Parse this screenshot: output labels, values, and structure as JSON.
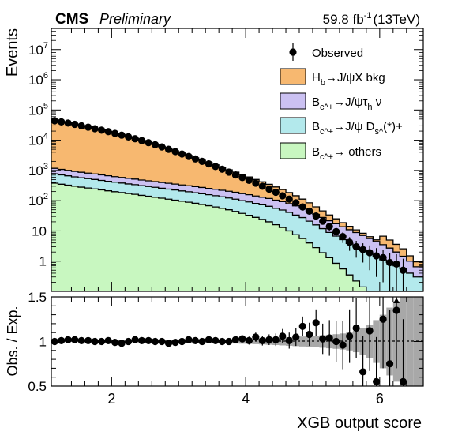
{
  "header": {
    "experiment": "CMS",
    "status": "Preliminary",
    "lumi_value": "59.8",
    "lumi_unit": "fb",
    "lumi_exp": "-1",
    "energy": "(13TeV)"
  },
  "colors": {
    "hb_bkg": "#f7b870",
    "tau": "#cbc1f2",
    "ds": "#b3e9ec",
    "others": "#c8f7c0",
    "band": "#a8a8a8"
  },
  "legend": [
    {
      "key": "observed",
      "label": "Observed"
    },
    {
      "key": "hb_bkg",
      "label": "H_b→J/ψX bkg"
    },
    {
      "key": "tau",
      "label": "B_c^+→J/ψτ_h ν"
    },
    {
      "key": "ds",
      "label": "B_c^+→J/ψ D_s^(*)+"
    },
    {
      "key": "others",
      "label": "B_c^+→ others"
    }
  ],
  "chart_data": [
    {
      "type": "area",
      "ylabel": "Events",
      "yscale": "log",
      "ylim": [
        0.1,
        50000000
      ],
      "xlim": [
        1.1,
        6.65
      ],
      "y_ticks": [
        {
          "value": 1,
          "label": "1"
        },
        {
          "value": 10,
          "label": "10"
        },
        {
          "value": 100,
          "label": "10",
          "exp": "2"
        },
        {
          "value": 1000,
          "label": "10",
          "exp": "3"
        },
        {
          "value": 10000,
          "label": "10",
          "exp": "4"
        },
        {
          "value": 100000,
          "label": "10",
          "exp": "5"
        },
        {
          "value": 1000000,
          "label": "10",
          "exp": "6"
        },
        {
          "value": 10000000,
          "label": "10",
          "exp": "7"
        }
      ],
      "bin_edges": [
        1.1,
        1.2,
        1.3,
        1.4,
        1.5,
        1.6,
        1.7,
        1.8,
        1.9,
        2.0,
        2.1,
        2.2,
        2.3,
        2.4,
        2.5,
        2.6,
        2.7,
        2.8,
        2.9,
        3.0,
        3.1,
        3.2,
        3.3,
        3.4,
        3.5,
        3.6,
        3.7,
        3.8,
        3.9,
        4.0,
        4.1,
        4.2,
        4.3,
        4.4,
        4.5,
        4.6,
        4.7,
        4.8,
        4.9,
        5.0,
        5.1,
        5.2,
        5.3,
        5.4,
        5.5,
        5.6,
        5.7,
        5.8,
        5.9,
        6.0,
        6.1,
        6.2,
        6.3,
        6.4,
        6.5,
        6.65
      ],
      "stack": [
        {
          "key": "others",
          "name": "B_c^+→ others",
          "values": [
            380,
            350,
            325,
            300,
            280,
            262,
            245,
            228,
            212,
            198,
            185,
            172,
            162,
            150,
            140,
            130,
            121,
            112,
            104,
            96,
            89,
            82,
            75,
            68,
            62,
            56,
            50,
            44,
            38,
            33,
            28,
            24,
            20,
            16,
            13,
            10,
            7.5,
            5.6,
            4,
            2.8,
            1.9,
            1.3,
            0.85,
            0.55,
            0.35,
            0.22,
            0.14,
            0.1,
            0.1,
            0.1,
            0.1,
            0.1,
            0.1,
            0.1,
            0.1
          ]
        },
        {
          "key": "ds",
          "name": "B_c^+→J/ψ D_s^(*)+",
          "values": [
            395,
            364,
            339,
            313,
            293,
            275,
            258,
            241,
            225,
            211,
            198,
            186,
            176,
            164,
            155,
            146,
            137,
            129,
            122,
            114,
            108,
            101,
            95,
            89,
            84,
            78,
            73,
            68,
            62,
            58,
            53,
            49,
            45,
            40,
            36,
            31,
            26,
            22,
            17,
            13,
            10,
            7.6,
            5.9,
            4.6,
            3.5,
            2.7,
            2.1,
            1.6,
            1.3,
            1.0,
            0.8,
            0.6,
            0.45,
            0.3,
            0.2
          ]
        },
        {
          "key": "tau",
          "name": "B_c^+→J/ψτ_h ν",
          "values": [
            400,
            368,
            343,
            317,
            297,
            279,
            262,
            245,
            229,
            215,
            202,
            190,
            180,
            169,
            160,
            151,
            143,
            135,
            128,
            121,
            115,
            109,
            103,
            97,
            92,
            87,
            82,
            77,
            71,
            66,
            62,
            57,
            53,
            48,
            44,
            39,
            34,
            29,
            24,
            19.5,
            16,
            12.8,
            10.5,
            8.6,
            7.1,
            5.9,
            4.8,
            3.9,
            3.1,
            2.4,
            1.8,
            1.3,
            0.9,
            0.6,
            0.35
          ]
        },
        {
          "key": "hb_bkg",
          "name": "H_b→J/ψX bkg",
          "values": [
            44000,
            40000,
            36500,
            33000,
            29500,
            26500,
            23500,
            21000,
            18800,
            16500,
            14500,
            12700,
            11000,
            9500,
            8100,
            6900,
            5800,
            4900,
            4100,
            3400,
            2800,
            2300,
            1900,
            1600,
            1300,
            1050,
            850,
            690,
            560,
            450,
            360,
            290,
            230,
            180,
            140,
            105,
            78,
            56,
            40,
            27,
            18,
            12,
            7.8,
            5.0,
            3.2,
            2.0,
            1.3,
            0.85,
            0.55,
            3.2,
            2.3,
            1.6,
            1.1,
            0.5,
            0.3
          ]
        }
      ],
      "observed": {
        "x": [
          1.15,
          1.25,
          1.35,
          1.45,
          1.55,
          1.65,
          1.75,
          1.85,
          1.95,
          2.05,
          2.15,
          2.25,
          2.35,
          2.45,
          2.55,
          2.65,
          2.75,
          2.85,
          2.95,
          3.05,
          3.15,
          3.25,
          3.35,
          3.45,
          3.55,
          3.65,
          3.75,
          3.85,
          3.95,
          4.05,
          4.15,
          4.25,
          4.35,
          4.45,
          4.55,
          4.65,
          4.75,
          4.85,
          4.95,
          5.05,
          5.15,
          5.25,
          5.35,
          5.45,
          5.55,
          5.65,
          5.75,
          5.85,
          5.95,
          6.05,
          6.15,
          6.25,
          6.35
        ],
        "y": [
          44000,
          40500,
          37000,
          33500,
          30000,
          27000,
          24000,
          21500,
          19200,
          16800,
          14700,
          12900,
          11200,
          9700,
          8300,
          7100,
          6000,
          5000,
          4200,
          3500,
          2900,
          2400,
          2000,
          1650,
          1350,
          1100,
          880,
          710,
          580,
          470,
          380,
          300,
          240,
          190,
          145,
          112,
          85,
          62,
          45,
          31,
          21,
          14,
          9.5,
          6.5,
          4.2,
          3.0,
          2.4,
          1.9,
          1.5,
          1.3,
          0.9,
          0.8,
          0.5
        ],
        "yerr": [
          210,
          200,
          190,
          180,
          170,
          160,
          155,
          145,
          140,
          130,
          120,
          115,
          105,
          100,
          90,
          85,
          78,
          70,
          65,
          60,
          54,
          49,
          45,
          41,
          37,
          33,
          30,
          27,
          24,
          22,
          19.5,
          17.3,
          15.5,
          13.8,
          12,
          10.6,
          9.2,
          7.9,
          6.7,
          5.6,
          4.6,
          3.7,
          3.1,
          2.5,
          2.0,
          1.7,
          1.5,
          1.4,
          1.2,
          1.1,
          0.9,
          0.9,
          0.7
        ]
      }
    },
    {
      "type": "scatter",
      "xlabel": "XGB output score",
      "ylabel": "Obs. / Exp.",
      "xlim": [
        1.1,
        6.65
      ],
      "ylim": [
        0.5,
        1.5
      ],
      "x_ticks": [
        2,
        4,
        6
      ],
      "y_ticks": [
        0.5,
        1,
        1.5
      ],
      "reference_line": 1,
      "band": {
        "x": [
          1.1,
          1.2,
          1.3,
          1.4,
          1.5,
          1.6,
          1.7,
          1.8,
          1.9,
          2.0,
          2.1,
          2.2,
          2.3,
          2.4,
          2.5,
          2.6,
          2.7,
          2.8,
          2.9,
          3.0,
          3.1,
          3.2,
          3.3,
          3.4,
          3.5,
          3.6,
          3.7,
          3.8,
          3.9,
          4.0,
          4.1,
          4.2,
          4.3,
          4.4,
          4.5,
          4.6,
          4.7,
          4.8,
          4.9,
          5.0,
          5.1,
          5.2,
          5.3,
          5.4,
          5.5,
          5.6,
          5.7,
          5.8,
          5.9,
          6.0,
          6.1,
          6.2,
          6.3,
          6.4,
          6.5
        ],
        "half_width": [
          0.005,
          0.005,
          0.005,
          0.005,
          0.005,
          0.006,
          0.006,
          0.006,
          0.006,
          0.007,
          0.007,
          0.007,
          0.008,
          0.008,
          0.008,
          0.009,
          0.009,
          0.01,
          0.01,
          0.011,
          0.012,
          0.013,
          0.014,
          0.016,
          0.017,
          0.019,
          0.021,
          0.023,
          0.025,
          0.027,
          0.03,
          0.033,
          0.036,
          0.04,
          0.044,
          0.048,
          0.052,
          0.056,
          0.06,
          0.065,
          0.07,
          0.076,
          0.082,
          0.09,
          0.1,
          0.12,
          0.15,
          0.19,
          0.24,
          0.3,
          0.38,
          0.45,
          0.5,
          0.55,
          0.55
        ]
      },
      "ratio": {
        "x": [
          1.15,
          1.25,
          1.35,
          1.45,
          1.55,
          1.65,
          1.75,
          1.85,
          1.95,
          2.05,
          2.15,
          2.25,
          2.35,
          2.45,
          2.55,
          2.65,
          2.75,
          2.85,
          2.95,
          3.05,
          3.15,
          3.25,
          3.35,
          3.45,
          3.55,
          3.65,
          3.75,
          3.85,
          3.95,
          4.05,
          4.15,
          4.25,
          4.35,
          4.45,
          4.55,
          4.65,
          4.75,
          4.85,
          4.95,
          5.05,
          5.15,
          5.25,
          5.35,
          5.45,
          5.55,
          5.65,
          5.75,
          5.85,
          5.95,
          6.05,
          6.15,
          6.25,
          6.35
        ],
        "y": [
          1.0,
          1.01,
          1.02,
          1.02,
          1.01,
          1.01,
          1.0,
          1.0,
          1.01,
          0.99,
          0.98,
          1.0,
          1.02,
          1.01,
          1.01,
          1.0,
          1.0,
          0.98,
          0.99,
          1.0,
          1.02,
          1.01,
          1.0,
          1.02,
          1.01,
          1.0,
          1.0,
          1.02,
          1.03,
          1.01,
          1.05,
          1.01,
          1.02,
          1.02,
          1.06,
          1.01,
          1.05,
          1.17,
          1.08,
          1.21,
          1.03,
          1.04,
          1.0,
          0.96,
          1.06,
          1.15,
          0.66,
          1.12,
          0.55,
          1.25,
          0.75,
          1.35,
          0.55
        ],
        "yerr": [
          0.006,
          0.006,
          0.006,
          0.006,
          0.006,
          0.007,
          0.007,
          0.007,
          0.008,
          0.008,
          0.009,
          0.009,
          0.01,
          0.01,
          0.011,
          0.012,
          0.013,
          0.014,
          0.015,
          0.016,
          0.018,
          0.02,
          0.022,
          0.024,
          0.027,
          0.03,
          0.033,
          0.037,
          0.04,
          0.045,
          0.05,
          0.055,
          0.06,
          0.07,
          0.08,
          0.09,
          0.1,
          0.11,
          0.13,
          0.15,
          0.17,
          0.2,
          0.23,
          0.27,
          0.3,
          0.34,
          0.4,
          0.45,
          0.5,
          0.55,
          0.6,
          0.65,
          0.7
        ]
      }
    }
  ]
}
